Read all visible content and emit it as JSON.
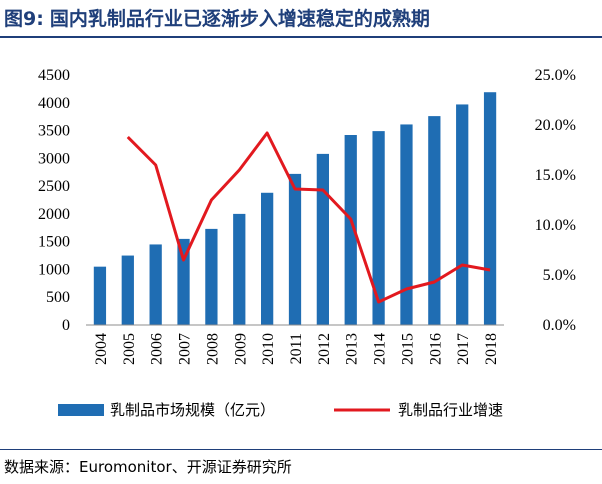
{
  "header": {
    "figure_number": "图9:",
    "title": "国内乳制品行业已逐渐步入增速稳定的成熟期"
  },
  "chart_data": {
    "type": "bar+line",
    "categories": [
      "2004",
      "2005",
      "2006",
      "2007",
      "2008",
      "2009",
      "2010",
      "2011",
      "2012",
      "2013",
      "2014",
      "2015",
      "2016",
      "2017",
      "2018"
    ],
    "series": [
      {
        "name": "乳制品市场规模（亿元）",
        "type": "bar",
        "axis": "left",
        "color": "#1f6db3",
        "values": [
          1050,
          1250,
          1450,
          1550,
          1730,
          2000,
          2380,
          2720,
          3080,
          3420,
          3490,
          3610,
          3760,
          3970,
          4190
        ]
      },
      {
        "name": "乳制品行业增速",
        "type": "line",
        "axis": "right",
        "color": "#e2191f",
        "values": [
          null,
          18.8,
          16.0,
          6.5,
          12.5,
          15.5,
          19.2,
          13.6,
          13.5,
          10.6,
          2.3,
          3.6,
          4.3,
          6.0,
          5.5
        ]
      }
    ],
    "left_axis": {
      "min": 0,
      "max": 4500,
      "step": 500,
      "ticks": [
        "0",
        "500",
        "1000",
        "1500",
        "2000",
        "2500",
        "3000",
        "3500",
        "4000",
        "4500"
      ]
    },
    "right_axis": {
      "min": 0,
      "max": 25,
      "step": 5,
      "ticks": [
        "0.0%",
        "5.0%",
        "10.0%",
        "15.0%",
        "20.0%",
        "25.0%"
      ]
    },
    "legend_position": "bottom"
  },
  "source": "数据来源：Euromonitor、开源证券研究所"
}
